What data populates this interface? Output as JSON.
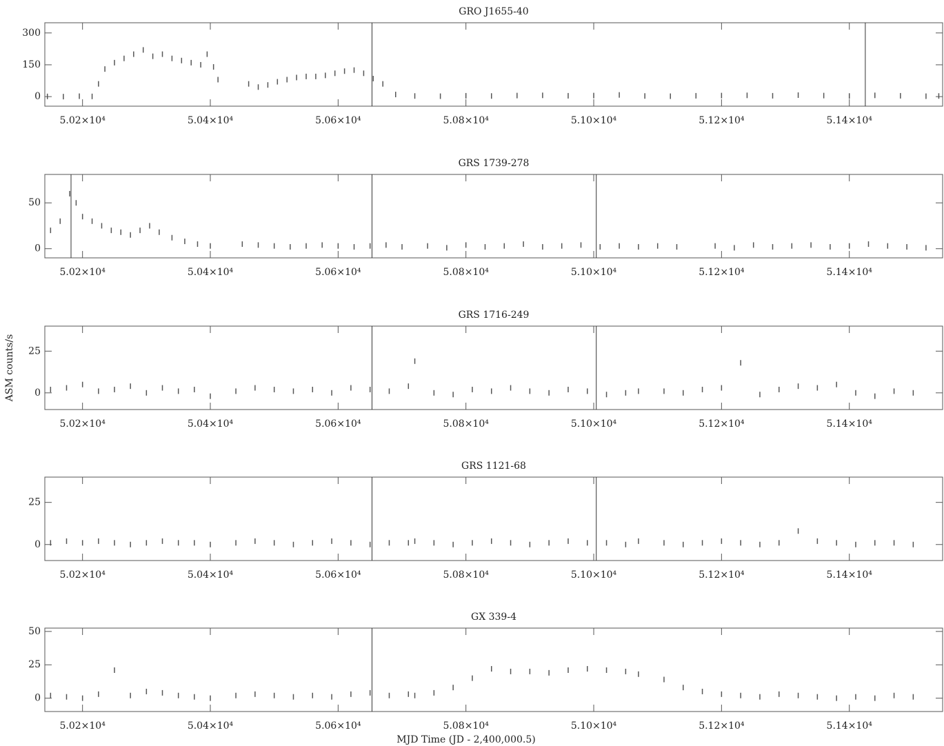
{
  "chart_data": [
    {
      "type": "scatter",
      "title": "GRO J1655-40",
      "color": "#555555",
      "x": [
        50145,
        50170,
        50195,
        50215,
        50225,
        50235,
        50250,
        50265,
        50280,
        50295,
        50310,
        50325,
        50340,
        50355,
        50370,
        50385,
        50395,
        50405,
        50412,
        50460,
        50475,
        50490,
        50505,
        50520,
        50535,
        50550,
        50565,
        50580,
        50595,
        50610,
        50625,
        50640,
        50655,
        50670,
        50690,
        50720,
        50760,
        50800,
        50840,
        50880,
        50920,
        50960,
        51000,
        51040,
        51080,
        51120,
        51160,
        51200,
        51240,
        51280,
        51320,
        51360,
        51400,
        51440,
        51480,
        51520,
        51540
      ],
      "values": [
        1,
        0,
        2,
        1,
        60,
        130,
        160,
        180,
        200,
        220,
        190,
        200,
        180,
        170,
        160,
        150,
        200,
        140,
        80,
        60,
        45,
        55,
        70,
        80,
        90,
        95,
        95,
        100,
        110,
        120,
        125,
        110,
        85,
        60,
        10,
        3,
        2,
        4,
        3,
        5,
        6,
        4,
        5,
        8,
        3,
        2,
        4,
        5,
        6,
        4,
        7,
        5,
        3,
        6,
        4,
        2,
        3
      ],
      "xlim": [
        50141,
        51546
      ],
      "ylim": [
        -45,
        348
      ],
      "yticks": [
        0,
        150,
        300
      ],
      "xticks": [
        {
          "value": 50200,
          "label": "5.02×10⁴"
        },
        {
          "value": 50400,
          "label": "5.04×10⁴"
        },
        {
          "value": 50600,
          "label": "5.06×10⁴"
        },
        {
          "value": 50800,
          "label": "5.08×10⁴"
        },
        {
          "value": 51000,
          "label": "5.10×10⁴"
        },
        {
          "value": 51200,
          "label": "5.12×10⁴"
        },
        {
          "value": 51400,
          "label": "5.14×10⁴"
        }
      ],
      "vlines": [
        50653,
        51425
      ]
    },
    {
      "type": "scatter",
      "title": "GRS 1739-278",
      "color": "#555555",
      "x": [
        50150,
        50165,
        50180,
        50190,
        50200,
        50215,
        50230,
        50245,
        50260,
        50275,
        50290,
        50305,
        50320,
        50340,
        50360,
        50380,
        50400,
        50450,
        50475,
        50500,
        50525,
        50550,
        50575,
        50600,
        50625,
        50650,
        50675,
        50700,
        50740,
        50770,
        50800,
        50830,
        50860,
        50890,
        50920,
        50950,
        50980,
        51010,
        51040,
        51070,
        51100,
        51130,
        51190,
        51220,
        51250,
        51280,
        51310,
        51340,
        51370,
        51400,
        51430,
        51460,
        51490,
        51520
      ],
      "values": [
        20,
        30,
        60,
        50,
        35,
        30,
        25,
        20,
        18,
        15,
        20,
        25,
        18,
        12,
        8,
        5,
        3,
        5,
        4,
        3,
        2,
        3,
        4,
        3,
        2,
        3,
        4,
        2,
        3,
        1,
        4,
        2,
        3,
        5,
        2,
        3,
        4,
        2,
        3,
        2,
        3,
        2,
        3,
        1,
        4,
        2,
        3,
        4,
        2,
        3,
        5,
        3,
        2,
        1
      ],
      "xlim": [
        50141,
        51546
      ],
      "ylim": [
        -10,
        81
      ],
      "yticks": [
        0,
        50
      ],
      "xticks": [
        {
          "value": 50200,
          "label": "5.02×10⁴"
        },
        {
          "value": 50400,
          "label": "5.04×10⁴"
        },
        {
          "value": 50600,
          "label": "5.06×10⁴"
        },
        {
          "value": 50800,
          "label": "5.08×10⁴"
        },
        {
          "value": 51000,
          "label": "5.10×10⁴"
        },
        {
          "value": 51200,
          "label": "5.12×10⁴"
        },
        {
          "value": 51400,
          "label": "5.14×10⁴"
        }
      ],
      "vlines": [
        50182,
        50653,
        51004
      ]
    },
    {
      "type": "scatter",
      "title": "GRS 1716-249",
      "color": "#555555",
      "ylabel": "ASM counts/s",
      "x": [
        50150,
        50175,
        50200,
        50225,
        50250,
        50275,
        50300,
        50325,
        50350,
        50375,
        50400,
        50440,
        50470,
        50500,
        50530,
        50560,
        50590,
        50620,
        50650,
        50680,
        50710,
        50720,
        50750,
        50780,
        50810,
        50840,
        50870,
        50900,
        50930,
        50960,
        50990,
        51020,
        51050,
        51070,
        51110,
        51140,
        51170,
        51200,
        51230,
        51260,
        51290,
        51320,
        51350,
        51380,
        51410,
        51440,
        51470,
        51500
      ],
      "values": [
        2,
        3,
        5,
        1,
        2,
        4,
        0,
        3,
        1,
        2,
        -2,
        1,
        3,
        2,
        1,
        2,
        0,
        3,
        2,
        1,
        4,
        19,
        0,
        -1,
        2,
        1,
        3,
        1,
        0,
        2,
        1,
        -1,
        0,
        1,
        1,
        0,
        2,
        3,
        18,
        -1,
        2,
        4,
        3,
        5,
        0,
        -2,
        1,
        0
      ],
      "xlim": [
        50141,
        51546
      ],
      "ylim": [
        -10,
        40
      ],
      "yticks": [
        0,
        25
      ],
      "xticks": [
        {
          "value": 50200,
          "label": "5.02×10⁴"
        },
        {
          "value": 50400,
          "label": "5.04×10⁴"
        },
        {
          "value": 50600,
          "label": "5.06×10⁴"
        },
        {
          "value": 50800,
          "label": "5.08×10⁴"
        },
        {
          "value": 51000,
          "label": "5.10×10⁴"
        },
        {
          "value": 51200,
          "label": "5.12×10⁴"
        },
        {
          "value": 51400,
          "label": "5.14×10⁴"
        }
      ],
      "vlines": [
        50653,
        51004
      ]
    },
    {
      "type": "scatter",
      "title": "GRS 1121-68",
      "color": "#555555",
      "x": [
        50150,
        50175,
        50200,
        50225,
        50250,
        50275,
        50300,
        50325,
        50350,
        50375,
        50400,
        50440,
        50470,
        50500,
        50530,
        50560,
        50590,
        50620,
        50650,
        50680,
        50710,
        50720,
        50750,
        50780,
        50810,
        50840,
        50870,
        50900,
        50930,
        50960,
        50990,
        51020,
        51050,
        51070,
        51110,
        51140,
        51170,
        51200,
        51230,
        51260,
        51290,
        51320,
        51350,
        51380,
        51410,
        51440,
        51470,
        51500
      ],
      "values": [
        1,
        2,
        1,
        2,
        1,
        0,
        1,
        2,
        1,
        1,
        0,
        1,
        2,
        1,
        0,
        1,
        2,
        1,
        0,
        1,
        1,
        2,
        1,
        0,
        1,
        2,
        1,
        0,
        1,
        2,
        1,
        1,
        0,
        2,
        1,
        0,
        1,
        2,
        1,
        0,
        1,
        8,
        2,
        1,
        0,
        1,
        1,
        0
      ],
      "xlim": [
        50141,
        51546
      ],
      "ylim": [
        -9.5,
        40
      ],
      "yticks": [
        0,
        25
      ],
      "xticks": [
        {
          "value": 50200,
          "label": "5.02×10⁴"
        },
        {
          "value": 50400,
          "label": "5.04×10⁴"
        },
        {
          "value": 50600,
          "label": "5.06×10⁴"
        },
        {
          "value": 50800,
          "label": "5.08×10⁴"
        },
        {
          "value": 51000,
          "label": "5.10×10⁴"
        },
        {
          "value": 51200,
          "label": "5.12×10⁴"
        },
        {
          "value": 51400,
          "label": "5.14×10⁴"
        }
      ],
      "vlines": [
        50653,
        51004
      ]
    },
    {
      "type": "scatter",
      "title": "GX 339-4",
      "color": "#555555",
      "xlabel": "MJD Time (JD - 2,400,000.5)",
      "x": [
        50150,
        50175,
        50200,
        50225,
        50250,
        50275,
        50300,
        50325,
        50350,
        50375,
        50400,
        50440,
        50470,
        50500,
        50530,
        50560,
        50590,
        50620,
        50650,
        50680,
        50710,
        50720,
        50750,
        50780,
        50810,
        50840,
        50870,
        50900,
        50930,
        50960,
        50990,
        51020,
        51050,
        51070,
        51110,
        51140,
        51170,
        51200,
        51230,
        51260,
        51290,
        51320,
        51350,
        51380,
        51410,
        51440,
        51470,
        51500
      ],
      "values": [
        2,
        1,
        0,
        3,
        21,
        2,
        5,
        4,
        2,
        1,
        0,
        2,
        3,
        2,
        1,
        2,
        1,
        3,
        4,
        2,
        3,
        2,
        4,
        8,
        15,
        22,
        20,
        20,
        19,
        21,
        22,
        21,
        20,
        18,
        14,
        8,
        5,
        3,
        2,
        1,
        3,
        2,
        1,
        0,
        1,
        0,
        2,
        1
      ],
      "xlim": [
        50141,
        51546
      ],
      "ylim": [
        -10,
        52.5
      ],
      "yticks": [
        0,
        25,
        50
      ],
      "xticks": [
        {
          "value": 50200,
          "label": "5.02×10⁴"
        },
        {
          "value": 50400,
          "label": "5.04×10⁴"
        },
        {
          "value": 50600,
          "label": "5.06×10⁴"
        },
        {
          "value": 50800,
          "label": "5.08×10⁴"
        },
        {
          "value": 51000,
          "label": "5.10×10⁴"
        },
        {
          "value": 51200,
          "label": "5.12×10⁴"
        },
        {
          "value": 51400,
          "label": "5.14×10⁴"
        }
      ],
      "vlines": [
        50653
      ]
    }
  ]
}
